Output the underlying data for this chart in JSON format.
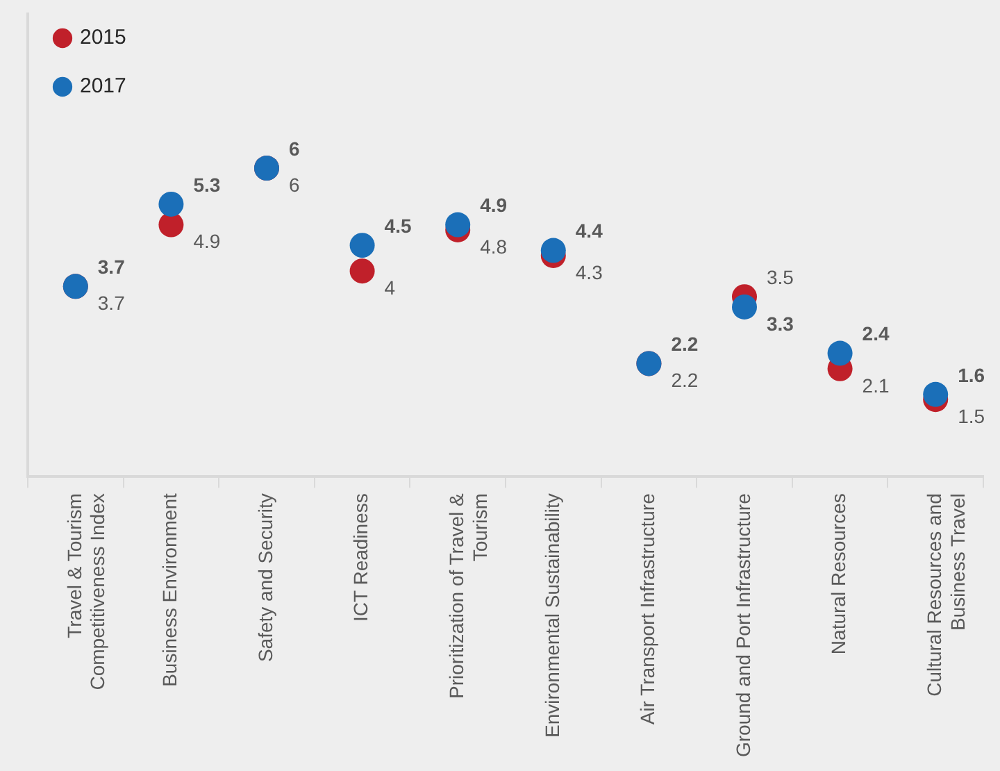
{
  "chart_data": {
    "type": "scatter",
    "categories": [
      "Travel & Tourism Competitiveness Index",
      "Business Environment",
      "Safety and Security",
      "ICT Readiness",
      "Prioritization of Travel & Tourism",
      "Environmental Sustainability",
      "Air Transport Infrastructure",
      "Ground and Port Infrastructure",
      "Natural Resources",
      "Cultural Resources and Business Travel"
    ],
    "series": [
      {
        "name": "2015",
        "color": "#c0202a",
        "values": [
          3.7,
          4.9,
          6,
          4,
          4.8,
          4.3,
          2.2,
          3.5,
          2.1,
          1.5
        ]
      },
      {
        "name": "2017",
        "color": "#1b6fb8",
        "values": [
          3.7,
          5.3,
          6,
          4.5,
          4.9,
          4.4,
          2.2,
          3.3,
          2.4,
          1.6
        ]
      }
    ],
    "ylim": [
      0,
      9
    ],
    "data_labels": true,
    "marker": "circle",
    "legend": "top left",
    "tick_labels": "x",
    "grid": false
  }
}
